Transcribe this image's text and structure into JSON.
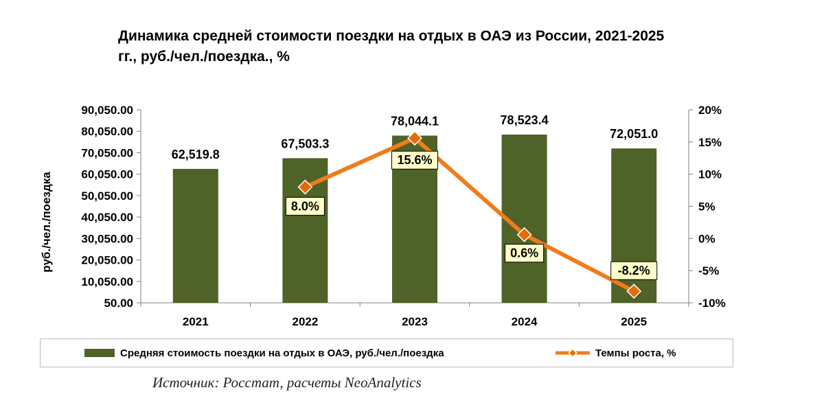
{
  "title_line1": "Динамика средней стоимости поездки на отдых в ОАЭ из России, 2021-2025",
  "title_line2": "гг., руб./чел./поездка., %",
  "source": "Источник: Росстат, расчеты NeoAnalytics",
  "colors": {
    "bar": "#4f6228",
    "line": "#f07c1a",
    "marker": "#e36c09",
    "label_bg": "#ffffcc"
  },
  "chart_data": {
    "type": "bar+line",
    "categories": [
      "2021",
      "2022",
      "2023",
      "2024",
      "2025"
    ],
    "series": [
      {
        "name": "Средняя стоимость поездки на отдых в ОАЭ, руб./чел./поездка",
        "type": "bar",
        "axis": "left",
        "values": [
          62519.8,
          67503.3,
          78044.1,
          78523.4,
          72051.0
        ],
        "labels": [
          "62,519.8",
          "67,503.3",
          "78,044.1",
          "78,523.4",
          "72,051.0"
        ]
      },
      {
        "name": "Темпы роста, %",
        "type": "line",
        "axis": "right",
        "points": [
          {
            "category": "2022",
            "value": 8.0,
            "label": "8.0%"
          },
          {
            "category": "2023",
            "value": 15.6,
            "label": "15.6%"
          },
          {
            "category": "2024",
            "value": 0.6,
            "label": "0.6%"
          },
          {
            "category": "2025",
            "value": -8.2,
            "label": "-8.2%"
          }
        ]
      }
    ],
    "ylabel": "руб./чел./поездка",
    "y_left": {
      "min": 50,
      "max": 90050,
      "step": 10000,
      "tick_labels": [
        "50.00",
        "10,050.00",
        "20,050.00",
        "30,050.00",
        "40,050.00",
        "50,050.00",
        "60,050.00",
        "70,050.00",
        "80,050.00",
        "90,050.00"
      ]
    },
    "y_right": {
      "min": -10,
      "max": 20,
      "step": 5,
      "tick_labels": [
        "-10%",
        "-5%",
        "0%",
        "5%",
        "10%",
        "15%",
        "20%"
      ]
    },
    "grid": false,
    "legend_position": "bottom"
  }
}
